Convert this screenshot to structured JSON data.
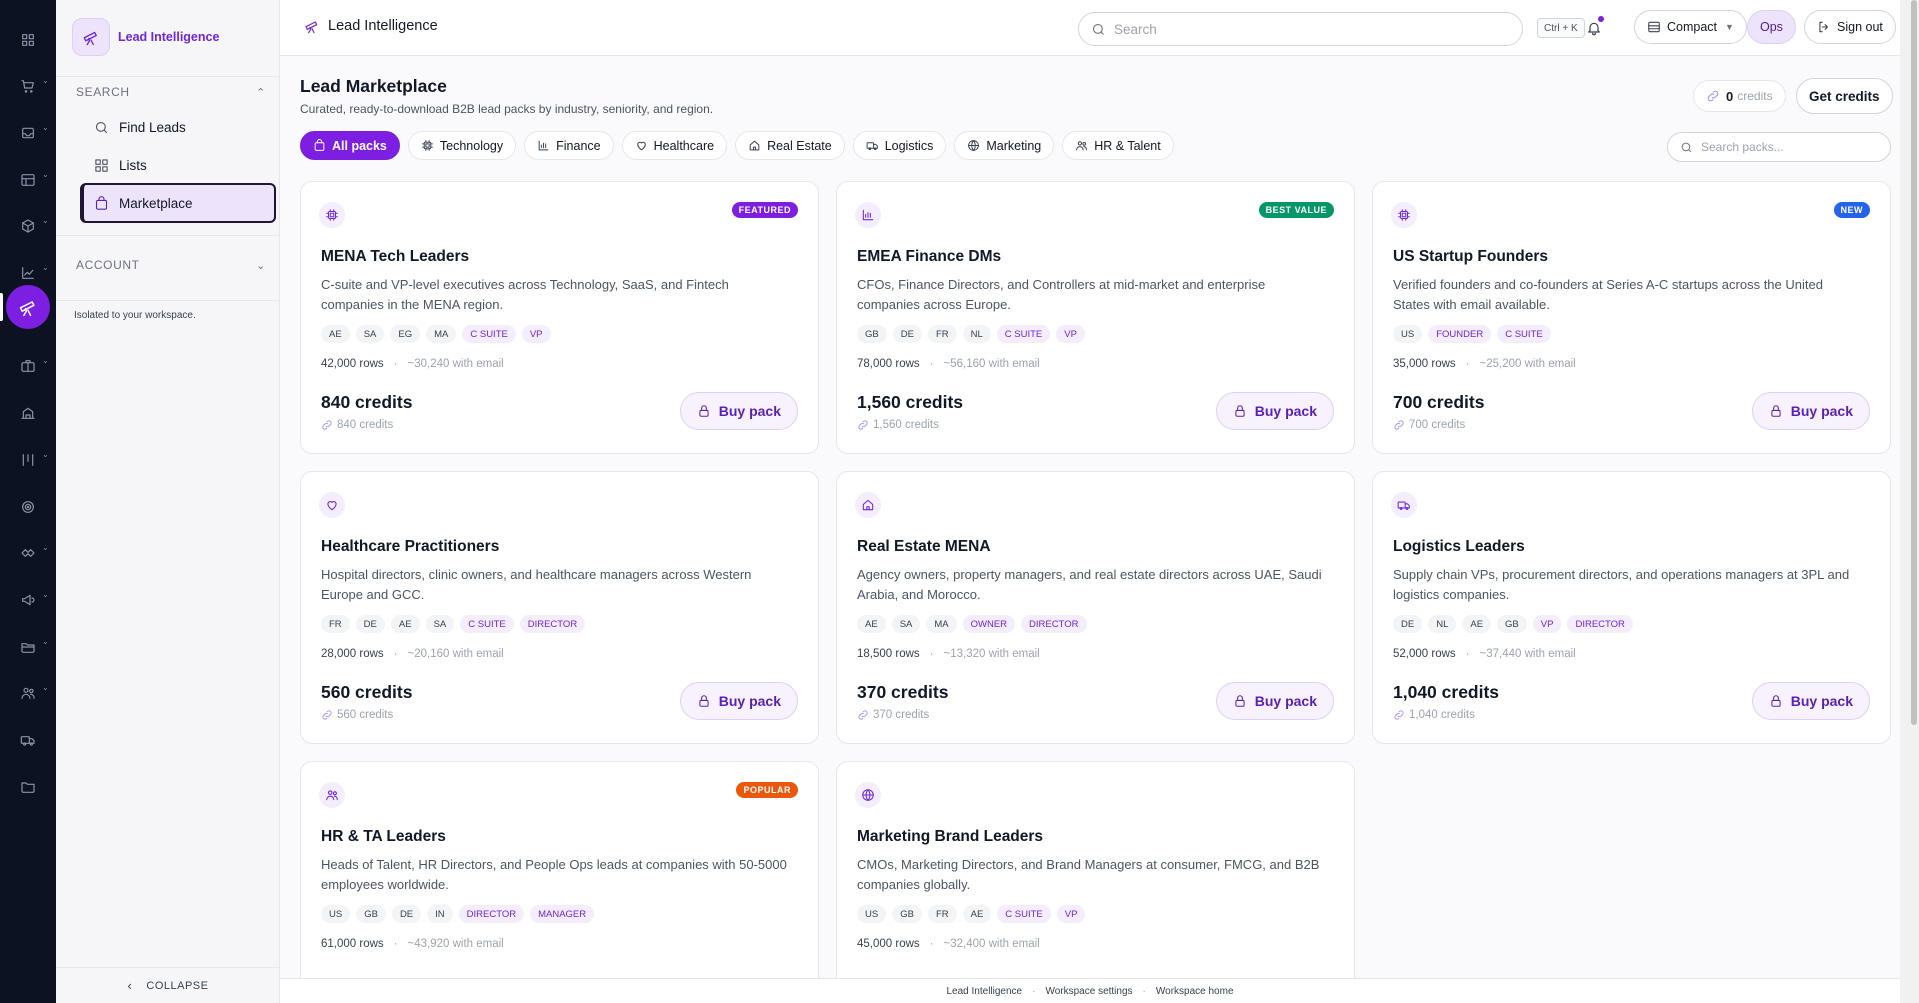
{
  "app": {
    "name": "Lead Intelligence"
  },
  "rail": {
    "items": [
      {
        "icon": "apps-grid-icon"
      },
      {
        "icon": "cart-icon"
      },
      {
        "icon": "inbox-icon"
      },
      {
        "icon": "table-icon"
      },
      {
        "icon": "cube-icon"
      },
      {
        "icon": "trend-chart-icon"
      },
      {
        "icon": "telescope-icon"
      },
      {
        "icon": "briefcase-icon"
      },
      {
        "icon": "building-icon"
      },
      {
        "icon": "columns-icon"
      },
      {
        "icon": "target-icon"
      },
      {
        "icon": "handshake-icon"
      },
      {
        "icon": "megaphone-icon"
      },
      {
        "icon": "folder-open-icon"
      },
      {
        "icon": "users-icon"
      },
      {
        "icon": "truck-icon"
      },
      {
        "icon": "folder-icon"
      }
    ]
  },
  "sidebar": {
    "brand": "Lead Intelligence",
    "search_heading": "SEARCH",
    "items": [
      {
        "label": "Find Leads",
        "icon": "search-icon"
      },
      {
        "label": "Lists",
        "icon": "grid-icon"
      },
      {
        "label": "Marketplace",
        "icon": "shopping-bag-icon",
        "active": true
      }
    ],
    "account_heading": "ACCOUNT",
    "workspace_note": "Isolated to your workspace.",
    "collapse_label": "COLLAPSE"
  },
  "topbar": {
    "title": "Lead Intelligence",
    "search_placeholder": "Search",
    "shortcut": "Ctrl + K",
    "density": "Compact",
    "role": "Ops",
    "signout": "Sign out"
  },
  "page": {
    "title": "Lead Marketplace",
    "subtitle": "Curated, ready-to-download B2B lead packs by industry, seniority, and region.",
    "credits_value": "0",
    "credits_label": "credits",
    "get_credits": "Get credits",
    "pack_search_placeholder": "Search packs..."
  },
  "filters": [
    {
      "label": "All packs",
      "icon": "bag-icon",
      "active": true
    },
    {
      "label": "Technology",
      "icon": "chip-icon"
    },
    {
      "label": "Finance",
      "icon": "bar-chart-icon"
    },
    {
      "label": "Healthcare",
      "icon": "heart-icon"
    },
    {
      "label": "Real Estate",
      "icon": "home-icon"
    },
    {
      "label": "Logistics",
      "icon": "truck-icon"
    },
    {
      "label": "Marketing",
      "icon": "globe-icon"
    },
    {
      "label": "HR & Talent",
      "icon": "users-icon"
    }
  ],
  "packs": [
    {
      "icon": "chip-icon",
      "badge": "FEATURED",
      "badge_color": "#7c1fe0",
      "title": "MENA Tech Leaders",
      "desc": "C-suite and VP-level executives across Technology, SaaS, and Fintech companies in the MENA region.",
      "regions": [
        "AE",
        "SA",
        "EG",
        "MA"
      ],
      "roles": [
        "C SUITE",
        "VP"
      ],
      "rows": "42,000 rows",
      "email": "~30,240 with email",
      "price": "840 credits",
      "price_sub": "840 credits",
      "buy": "Buy pack"
    },
    {
      "icon": "bar-chart-icon",
      "badge": "BEST VALUE",
      "badge_color": "#059669",
      "title": "EMEA Finance DMs",
      "desc": "CFOs, Finance Directors, and Controllers at mid-market and enterprise companies across Europe.",
      "regions": [
        "GB",
        "DE",
        "FR",
        "NL"
      ],
      "roles": [
        "C SUITE",
        "VP"
      ],
      "rows": "78,000 rows",
      "email": "~56,160 with email",
      "price": "1,560 credits",
      "price_sub": "1,560 credits",
      "buy": "Buy pack"
    },
    {
      "icon": "chip-icon",
      "badge": "NEW",
      "badge_color": "#2563eb",
      "title": "US Startup Founders",
      "desc": "Verified founders and co-founders at Series A-C startups across the United States with email available.",
      "regions": [
        "US"
      ],
      "roles": [
        "FOUNDER",
        "C SUITE"
      ],
      "rows": "35,000 rows",
      "email": "~25,200 with email",
      "price": "700 credits",
      "price_sub": "700 credits",
      "buy": "Buy pack"
    },
    {
      "icon": "heart-icon",
      "badge": "",
      "badge_color": "",
      "title": "Healthcare Practitioners",
      "desc": "Hospital directors, clinic owners, and healthcare managers across Western Europe and GCC.",
      "regions": [
        "FR",
        "DE",
        "AE",
        "SA"
      ],
      "roles": [
        "C SUITE",
        "DIRECTOR"
      ],
      "rows": "28,000 rows",
      "email": "~20,160 with email",
      "price": "560 credits",
      "price_sub": "560 credits",
      "buy": "Buy pack"
    },
    {
      "icon": "home-icon",
      "badge": "",
      "badge_color": "",
      "title": "Real Estate MENA",
      "desc": "Agency owners, property managers, and real estate directors across UAE, Saudi Arabia, and Morocco.",
      "regions": [
        "AE",
        "SA",
        "MA"
      ],
      "roles": [
        "OWNER",
        "DIRECTOR"
      ],
      "rows": "18,500 rows",
      "email": "~13,320 with email",
      "price": "370 credits",
      "price_sub": "370 credits",
      "buy": "Buy pack"
    },
    {
      "icon": "truck-icon",
      "badge": "",
      "badge_color": "",
      "title": "Logistics Leaders",
      "desc": "Supply chain VPs, procurement directors, and operations managers at 3PL and logistics companies.",
      "regions": [
        "DE",
        "NL",
        "AE",
        "GB"
      ],
      "roles": [
        "VP",
        "DIRECTOR"
      ],
      "rows": "52,000 rows",
      "email": "~37,440 with email",
      "price": "1,040 credits",
      "price_sub": "1,040 credits",
      "buy": "Buy pack"
    },
    {
      "icon": "users-icon",
      "badge": "POPULAR",
      "badge_color": "#ea580c",
      "title": "HR & TA Leaders",
      "desc": "Heads of Talent, HR Directors, and People Ops leads at companies with 50-5000 employees worldwide.",
      "regions": [
        "US",
        "GB",
        "DE",
        "IN"
      ],
      "roles": [
        "DIRECTOR",
        "MANAGER"
      ],
      "rows": "61,000 rows",
      "email": "~43,920 with email",
      "price": "",
      "price_sub": "",
      "buy": ""
    },
    {
      "icon": "globe-icon",
      "badge": "",
      "badge_color": "",
      "title": "Marketing Brand Leaders",
      "desc": "CMOs, Marketing Directors, and Brand Managers at consumer, FMCG, and B2B companies globally.",
      "regions": [
        "US",
        "GB",
        "FR",
        "AE"
      ],
      "roles": [
        "C SUITE",
        "VP"
      ],
      "rows": "45,000 rows",
      "email": "~32,400 with email",
      "price": "",
      "price_sub": "",
      "buy": ""
    }
  ],
  "footer": {
    "links": [
      "Lead Intelligence",
      "Workspace settings",
      "Workspace home"
    ]
  }
}
